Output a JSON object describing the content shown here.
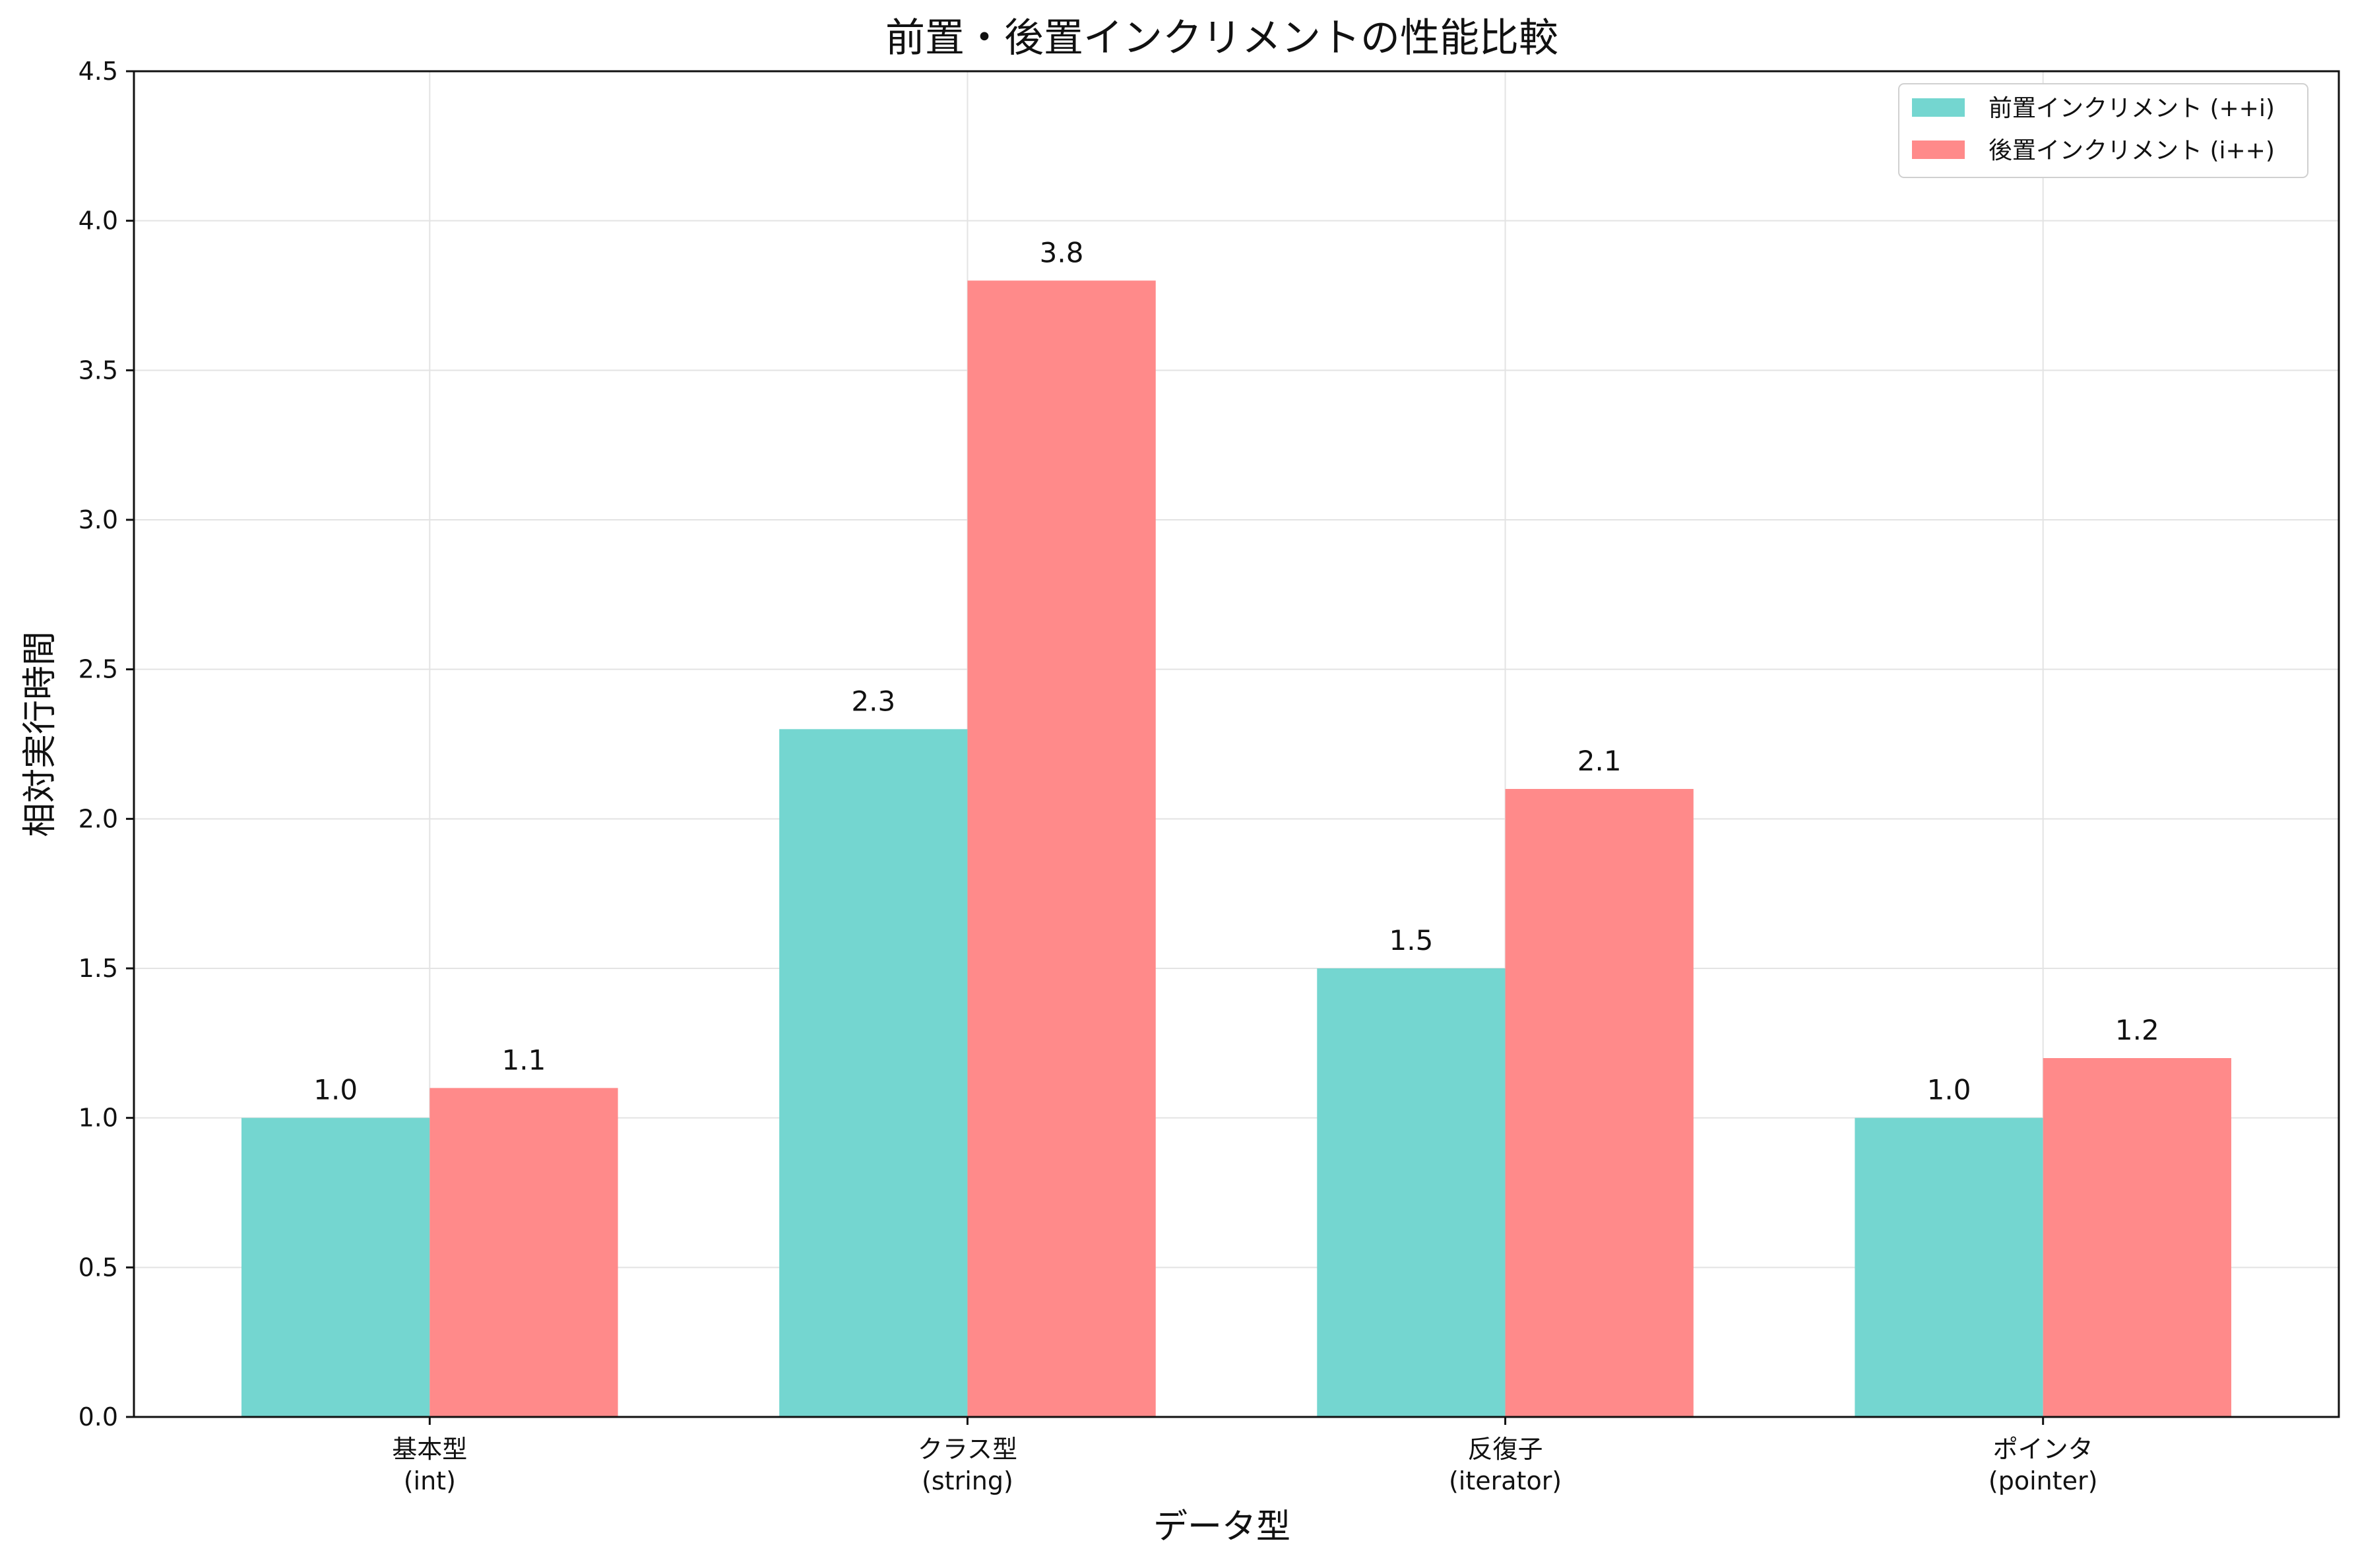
{
  "chart_data": {
    "type": "bar",
    "title": "前置・後置インクリメントの性能比較",
    "xlabel": "データ型",
    "ylabel": "相対実行時間",
    "ylim": [
      0,
      4.5
    ],
    "yticks": [
      "0.0",
      "0.5",
      "1.0",
      "1.5",
      "2.0",
      "2.5",
      "3.0",
      "3.5",
      "4.0",
      "4.5"
    ],
    "categories": [
      [
        "基本型",
        "(int)"
      ],
      [
        "クラス型",
        "(string)"
      ],
      [
        "反復子",
        "(iterator)"
      ],
      [
        "ポインタ",
        "(pointer)"
      ]
    ],
    "series": [
      {
        "name": "前置インクリメント (++i)",
        "color": "#74d6d0",
        "values": [
          1.0,
          2.3,
          1.5,
          1.0
        ],
        "labels": [
          "1.0",
          "2.3",
          "1.5",
          "1.0"
        ]
      },
      {
        "name": "後置インクリメント (i++)",
        "color": "#ff8a8a",
        "values": [
          1.1,
          3.8,
          2.1,
          1.2
        ],
        "labels": [
          "1.1",
          "3.8",
          "2.1",
          "1.2"
        ]
      }
    ],
    "grid": true,
    "legend_position": "top-right"
  }
}
